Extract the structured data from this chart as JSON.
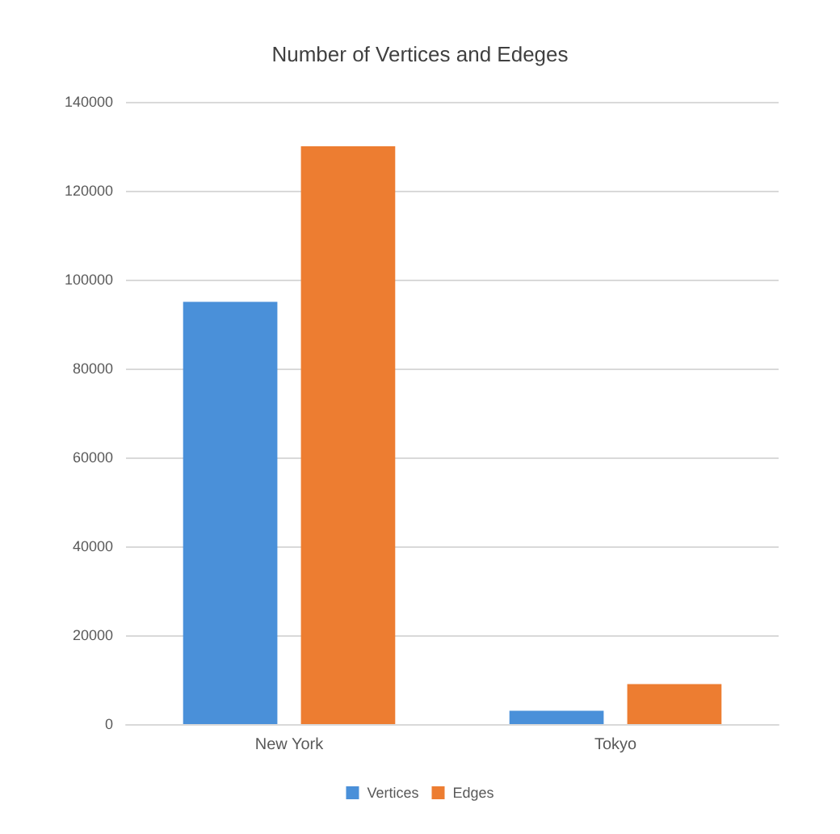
{
  "chart_data": {
    "type": "bar",
    "title": "Number of Vertices and Edeges",
    "categories": [
      "New York",
      "Tokyo"
    ],
    "series": [
      {
        "name": "Vertices",
        "color": "#4a90d9",
        "values": [
          95000,
          3000
        ]
      },
      {
        "name": "Edges",
        "color": "#ed7d31",
        "values": [
          130000,
          9000
        ]
      }
    ],
    "ylim": [
      0,
      140000
    ],
    "yticks": [
      0,
      20000,
      40000,
      60000,
      80000,
      100000,
      120000,
      140000
    ],
    "grid": "y",
    "legend": "bottom"
  }
}
